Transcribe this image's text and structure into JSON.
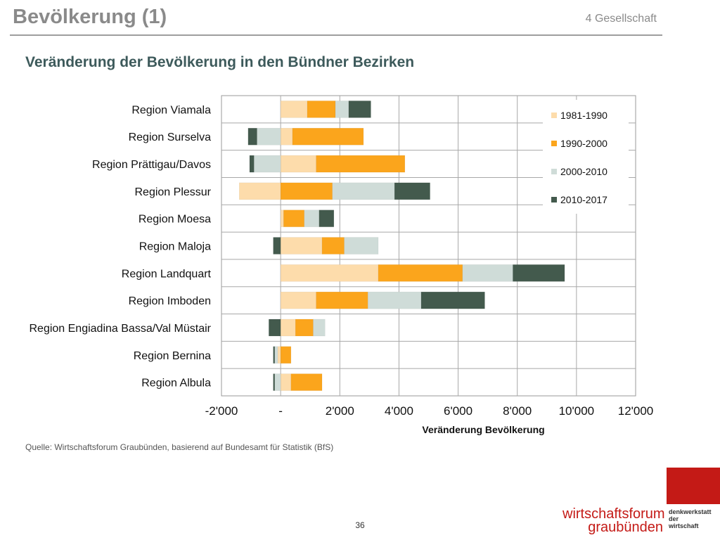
{
  "slide": {
    "title": "Bevölkerung (1)",
    "section": "4 Gesellschaft",
    "subtitle": "Veränderung der Bevölkerung in den Bündner Bezirken",
    "source": "Quelle: Wirtschaftsforum Graubünden, basierend auf Bundesamt für Statistik (BfS)",
    "page_number": "36"
  },
  "logo": {
    "name_line1": "wirtschaftsforum",
    "name_line2": "graubünden",
    "tag_line1": "denkwerkstatt",
    "tag_line2": "der",
    "tag_line3": "wirtschaft",
    "color": "#c41a16"
  },
  "chart_data": {
    "type": "bar",
    "orientation": "horizontal",
    "stacked": true,
    "title": "",
    "xlabel": "Veränderung Bevölkerung",
    "ylabel": "",
    "xlim": [
      -2000,
      12000
    ],
    "x_ticks": [
      -2000,
      0,
      2000,
      4000,
      6000,
      8000,
      10000,
      12000
    ],
    "x_tick_labels": [
      "-2'000",
      "-",
      "2'000",
      "4'000",
      "6'000",
      "8'000",
      "10'000",
      "12'000"
    ],
    "grid": true,
    "legend_position": "top-right",
    "categories": [
      "Region Viamala",
      "Region Surselva",
      "Region Prättigau/Davos",
      "Region Plessur",
      "Region Moesa",
      "Region Maloja",
      "Region Landquart",
      "Region Imboden",
      "Region Engiadina Bassa/Val Müstair",
      "Region Bernina",
      "Region Albula"
    ],
    "series": [
      {
        "name": "1981-1990",
        "color": "#fddcab",
        "values": [
          900,
          400,
          1200,
          -1400,
          100,
          1400,
          3300,
          1200,
          500,
          -100,
          350
        ]
      },
      {
        "name": "1990-2000",
        "color": "#fba51c",
        "values": [
          950,
          2400,
          3000,
          1750,
          700,
          750,
          2850,
          1750,
          600,
          350,
          1050
        ]
      },
      {
        "name": "2000-2010",
        "color": "#cfdcd8",
        "values": [
          450,
          -800,
          -900,
          2100,
          500,
          1150,
          1700,
          1800,
          400,
          -100,
          -200
        ]
      },
      {
        "name": "2010-2017",
        "color": "#435a4d",
        "values": [
          750,
          -300,
          -150,
          1200,
          500,
          -250,
          1750,
          2150,
          -400,
          -50,
          -50
        ]
      }
    ]
  }
}
